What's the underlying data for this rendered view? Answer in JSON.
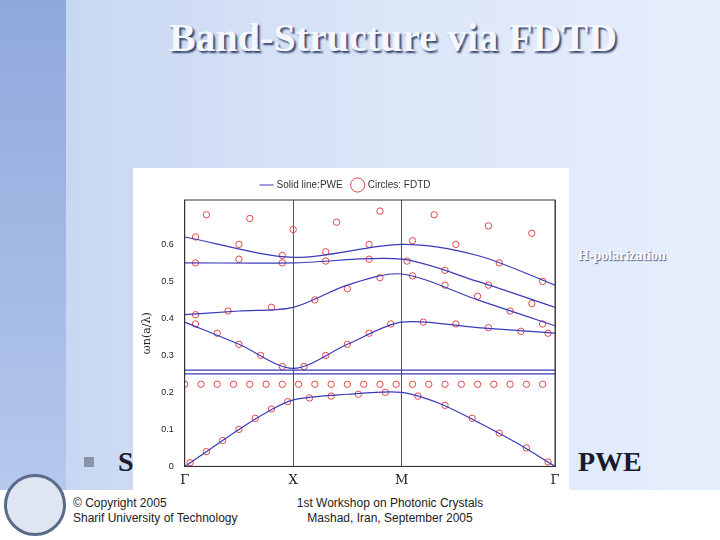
{
  "slide": {
    "title": "Band-Structure via FDTD",
    "side_label": "H-polarization",
    "bullet_fragments": [
      "S",
      "PWE"
    ],
    "footer_left": [
      "© Copyright 2005",
      "Sharif University of Technology"
    ],
    "footer_center": [
      "1st Workshop on Photonic Crystals",
      "Mashad, Iran, September 2005"
    ]
  },
  "chart_data": {
    "type": "scatter",
    "y_label": "ωn(a/λ)",
    "xlim": [
      0,
      3.414
    ],
    "xticks": [
      {
        "value": 0,
        "label": "Γ"
      },
      {
        "value": 1,
        "label": "X"
      },
      {
        "value": 2,
        "label": "M"
      },
      {
        "value": 3.414,
        "label": "Γ"
      }
    ],
    "ylim": [
      0,
      0.72
    ],
    "yticks": [
      0,
      0.1,
      0.2,
      0.3,
      0.4,
      0.5,
      0.6
    ],
    "grid": "x",
    "legend": "top",
    "series": [
      {
        "name": "Solid line:PWE",
        "color": "#3a3ab8",
        "marker": "none",
        "line_style": "solid",
        "x": [
          0,
          0.25,
          0.5,
          0.75,
          1,
          1.5,
          2,
          2.35,
          2.7,
          3.05,
          3.414,
          null,
          0,
          0.5,
          1,
          1.5,
          2,
          2.7,
          3.414,
          null,
          0,
          0.5,
          1,
          1.5,
          2,
          2.7,
          3.414,
          null,
          0,
          1,
          2,
          2.7,
          3.414,
          null,
          0,
          1,
          2,
          2.7,
          3.414,
          null,
          0,
          3.414,
          null,
          0,
          3.414
        ],
        "values": [
          0,
          0.05,
          0.1,
          0.145,
          0.18,
          0.195,
          0.2,
          0.17,
          0.12,
          0.065,
          0,
          null,
          0.39,
          0.33,
          0.265,
          0.33,
          0.39,
          0.375,
          0.36,
          null,
          0.41,
          0.42,
          0.43,
          0.49,
          0.52,
          0.45,
          0.38,
          null,
          0.55,
          0.55,
          0.56,
          0.5,
          0.43,
          null,
          0.62,
          0.565,
          0.6,
          0.57,
          0.49,
          null,
          0.25,
          0.25,
          null,
          0.26,
          0.26
        ]
      },
      {
        "name": "Circles: FDTD",
        "color": "#e04848",
        "marker": "circle",
        "line_style": "none",
        "x": [
          0.05,
          0.2,
          0.35,
          0.5,
          0.65,
          0.8,
          0.95,
          1.15,
          1.35,
          1.6,
          1.85,
          2.15,
          2.4,
          2.65,
          2.9,
          3.15,
          3.35,
          0.1,
          0.3,
          0.5,
          0.7,
          0.9,
          1.1,
          1.3,
          1.5,
          1.7,
          1.9,
          2.2,
          2.5,
          2.8,
          3.1,
          3.35,
          0.1,
          0.4,
          0.8,
          1.2,
          1.5,
          1.8,
          2.1,
          2.4,
          2.7,
          3.0,
          3.3,
          0.1,
          0.5,
          0.9,
          1.3,
          1.7,
          2.05,
          2.4,
          2.8,
          3.2,
          0.1,
          0.5,
          0.9,
          1.3,
          1.7,
          2.1,
          2.5,
          2.9,
          3.3,
          0.2,
          0.6,
          1.0,
          1.4,
          1.8,
          2.3,
          2.8,
          3.2,
          0,
          0.15,
          0.3,
          0.45,
          0.6,
          0.75,
          0.9,
          1.05,
          1.2,
          1.35,
          1.5,
          1.65,
          1.8,
          1.95,
          2.1,
          2.25,
          2.4,
          2.55,
          2.7,
          2.85,
          3.0,
          3.15,
          3.3
        ],
        "values": [
          0.01,
          0.04,
          0.07,
          0.1,
          0.13,
          0.155,
          0.175,
          0.185,
          0.19,
          0.195,
          0.2,
          0.19,
          0.165,
          0.13,
          0.09,
          0.05,
          0.012,
          0.385,
          0.36,
          0.33,
          0.3,
          0.27,
          0.27,
          0.3,
          0.33,
          0.36,
          0.385,
          0.39,
          0.385,
          0.375,
          0.365,
          0.36,
          0.41,
          0.42,
          0.43,
          0.45,
          0.48,
          0.51,
          0.515,
          0.49,
          0.46,
          0.42,
          0.385,
          0.55,
          0.56,
          0.55,
          0.555,
          0.56,
          0.555,
          0.53,
          0.49,
          0.44,
          0.62,
          0.6,
          0.57,
          0.58,
          0.6,
          0.61,
          0.6,
          0.55,
          0.5,
          0.68,
          0.67,
          0.64,
          0.66,
          0.69,
          0.68,
          0.65,
          0.63,
          0.222,
          0.222,
          0.222,
          0.222,
          0.222,
          0.222,
          0.222,
          0.222,
          0.222,
          0.222,
          0.222,
          0.222,
          0.222,
          0.222,
          0.222,
          0.222,
          0.222,
          0.222,
          0.222,
          0.222,
          0.222,
          0.222,
          0.222
        ]
      }
    ]
  }
}
